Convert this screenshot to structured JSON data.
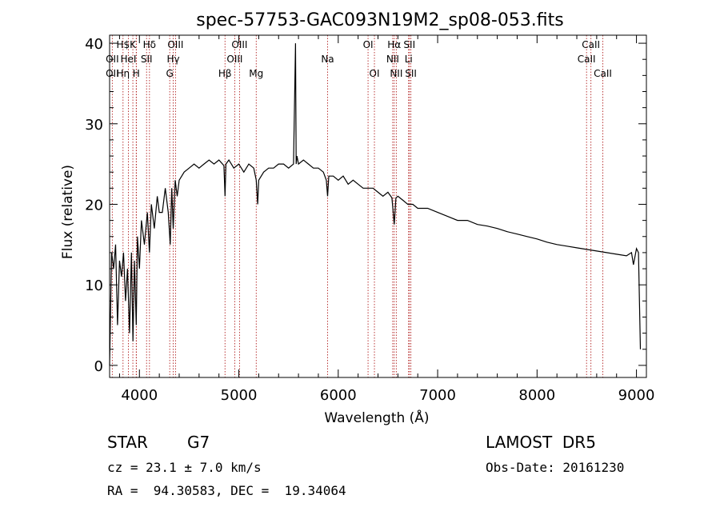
{
  "chart_data": {
    "type": "line",
    "title": "spec-57753-GAC093N19M2_sp08-053.fits",
    "xlabel": "Wavelength (Å)",
    "ylabel": "Flux (relative)",
    "xlim": [
      3700,
      9100
    ],
    "ylim": [
      -1.5,
      41
    ],
    "xticks": [
      4000,
      5000,
      6000,
      7000,
      8000,
      9000
    ],
    "yticks": [
      0,
      10,
      20,
      30,
      40
    ],
    "grid": false,
    "series": [
      {
        "x": [
          3700,
          3720,
          3740,
          3760,
          3780,
          3800,
          3820,
          3840,
          3860,
          3880,
          3900,
          3920,
          3935,
          3950,
          3968,
          3980,
          4000,
          4020,
          4050,
          4080,
          4101,
          4120,
          4150,
          4180,
          4200,
          4230,
          4260,
          4290,
          4310,
          4325,
          4340,
          4360,
          4380,
          4400,
          4450,
          4500,
          4550,
          4600,
          4650,
          4700,
          4750,
          4800,
          4850,
          4861,
          4870,
          4900,
          4950,
          5000,
          5050,
          5100,
          5150,
          5175,
          5190,
          5200,
          5250,
          5300,
          5350,
          5400,
          5450,
          5500,
          5550,
          5570,
          5577,
          5585,
          5600,
          5650,
          5700,
          5750,
          5800,
          5850,
          5880,
          5893,
          5905,
          5950,
          6000,
          6050,
          6100,
          6150,
          6200,
          6250,
          6300,
          6350,
          6400,
          6450,
          6500,
          6540,
          6563,
          6580,
          6600,
          6650,
          6700,
          6750,
          6800,
          6900,
          7000,
          7100,
          7200,
          7300,
          7400,
          7500,
          7600,
          7700,
          7800,
          7900,
          8000,
          8100,
          8200,
          8300,
          8400,
          8500,
          8600,
          8700,
          8800,
          8900,
          8950,
          8970,
          9000,
          9020,
          9040
        ],
        "y": [
          0,
          14,
          12,
          15,
          5,
          13,
          11,
          14,
          8,
          12,
          4,
          14,
          3,
          13,
          5,
          16,
          12,
          18,
          15,
          19,
          14,
          20,
          17,
          21,
          19,
          19,
          22,
          19,
          15,
          22,
          17,
          23,
          21,
          23,
          24,
          24.5,
          25,
          24.5,
          25,
          25.5,
          25,
          25.5,
          24.8,
          21,
          25,
          25.5,
          24.5,
          25,
          24,
          25,
          24.5,
          23,
          20,
          23,
          24,
          24.5,
          24.5,
          25,
          25,
          24.5,
          25,
          40,
          25,
          26,
          25,
          25.5,
          25,
          24.5,
          24.5,
          24,
          23,
          21,
          23.5,
          23.5,
          23,
          23.5,
          22.5,
          23,
          22.5,
          22,
          22,
          22,
          21.5,
          21,
          21.5,
          20.8,
          17.5,
          20.8,
          21,
          20.5,
          20,
          20,
          19.5,
          19.5,
          19,
          18.5,
          18,
          18,
          17.5,
          17.3,
          17,
          16.6,
          16.3,
          16,
          15.7,
          15.3,
          15,
          14.8,
          14.6,
          14.4,
          14.2,
          14,
          13.8,
          13.6,
          14,
          12.5,
          14.5,
          14,
          2
        ]
      }
    ],
    "spectral_lines": [
      {
        "label": "H$",
        "wavelength": 3835,
        "row": 0
      },
      {
        "label": "K",
        "wavelength": 3934,
        "row": 0
      },
      {
        "label": "Hδ",
        "wavelength": 4101,
        "row": 0
      },
      {
        "label": "OIII",
        "wavelength": 4363,
        "row": 0
      },
      {
        "label": "OIII",
        "wavelength": 5007,
        "row": 0
      },
      {
        "label": "OI",
        "wavelength": 6300,
        "row": 0
      },
      {
        "label": "Hα",
        "wavelength": 6563,
        "row": 0
      },
      {
        "label": "SII",
        "wavelength": 6716,
        "row": 0
      },
      {
        "label": "CaII",
        "wavelength": 8542,
        "row": 0
      },
      {
        "label": "OII",
        "wavelength": 3727,
        "row": 1
      },
      {
        "label": "HeI",
        "wavelength": 3889,
        "row": 1
      },
      {
        "label": "SII",
        "wavelength": 4072,
        "row": 1
      },
      {
        "label": "Hγ",
        "wavelength": 4340,
        "row": 1
      },
      {
        "label": "OIII",
        "wavelength": 4959,
        "row": 1
      },
      {
        "label": "NII",
        "wavelength": 6548,
        "row": 1
      },
      {
        "label": "Li",
        "wavelength": 6708,
        "row": 1
      },
      {
        "label": "CaII",
        "wavelength": 8498,
        "row": 1
      },
      {
        "label": "OII",
        "wavelength": 3727,
        "row": 2
      },
      {
        "label": "Hη",
        "wavelength": 3835,
        "row": 2
      },
      {
        "label": "H",
        "wavelength": 3968,
        "row": 2
      },
      {
        "label": "G",
        "wavelength": 4305,
        "row": 2
      },
      {
        "label": "Hβ",
        "wavelength": 4861,
        "row": 2
      },
      {
        "label": "Mg",
        "wavelength": 5175,
        "row": 2
      },
      {
        "label": "Na",
        "wavelength": 5893,
        "row": 1
      },
      {
        "label": "OI",
        "wavelength": 6364,
        "row": 2
      },
      {
        "label": "NII",
        "wavelength": 6584,
        "row": 2
      },
      {
        "label": "SII",
        "wavelength": 6731,
        "row": 2
      },
      {
        "label": "CaII",
        "wavelength": 8662,
        "row": 2
      }
    ],
    "extra_line_markers": [
      3889,
      3970,
      4101,
      4305,
      4340,
      4861,
      5007,
      5175,
      5893,
      6300,
      6364,
      6548,
      6563,
      6584,
      6716,
      6731,
      8498,
      8542,
      8662
    ]
  },
  "info": {
    "object_type": "STAR",
    "subclass": "G7",
    "survey": "LAMOST  DR5",
    "velocity": "cz = 23.1 ± 7.0 km/s",
    "obs_date": "Obs-Date: 20161230",
    "coords": "RA =  94.30583, DEC =  19.34064"
  },
  "colors": {
    "spectrum": "#000000",
    "line_markers": "#b22222",
    "background": "#ffffff"
  }
}
